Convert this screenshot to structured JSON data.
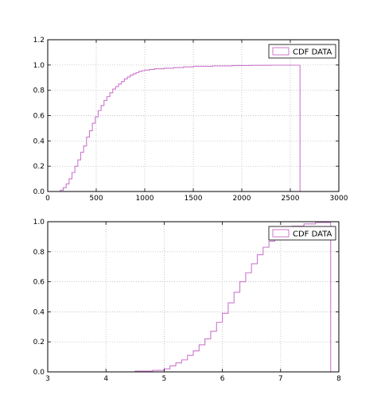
{
  "chart_data": [
    {
      "type": "step",
      "title": "",
      "xlabel": "",
      "ylabel": "",
      "xlim": [
        0,
        3000
      ],
      "ylim": [
        0.0,
        1.2
      ],
      "x_ticks": [
        0,
        500,
        1000,
        1500,
        2000,
        2500,
        3000
      ],
      "x_tick_labels": [
        "0",
        "500",
        "1000",
        "1500",
        "2000",
        "2500",
        "3000"
      ],
      "y_ticks": [
        0.0,
        0.2,
        0.4,
        0.6,
        0.8,
        1.0,
        1.2
      ],
      "y_tick_labels": [
        "0.0",
        "0.2",
        "0.4",
        "0.6",
        "0.8",
        "1.0",
        "1.2"
      ],
      "grid": true,
      "legend": {
        "position": "top-right",
        "entries": [
          "CDF DATA"
        ]
      },
      "series": [
        {
          "name": "CDF DATA",
          "color": "#cc77cc",
          "x": [
            80,
            130,
            160,
            190,
            220,
            250,
            280,
            310,
            340,
            370,
            400,
            430,
            460,
            490,
            520,
            550,
            580,
            610,
            640,
            670,
            700,
            730,
            760,
            790,
            820,
            850,
            880,
            910,
            940,
            970,
            1000,
            1050,
            1100,
            1200,
            1300,
            1400,
            1500,
            1700,
            1900,
            2100,
            2300,
            2600
          ],
          "y": [
            0.0,
            0.01,
            0.03,
            0.06,
            0.1,
            0.15,
            0.2,
            0.25,
            0.31,
            0.36,
            0.43,
            0.48,
            0.54,
            0.59,
            0.64,
            0.68,
            0.72,
            0.75,
            0.78,
            0.81,
            0.83,
            0.85,
            0.87,
            0.89,
            0.905,
            0.92,
            0.93,
            0.94,
            0.95,
            0.955,
            0.96,
            0.965,
            0.97,
            0.975,
            0.98,
            0.985,
            0.99,
            0.993,
            0.996,
            0.998,
            0.999,
            1.0
          ]
        }
      ]
    },
    {
      "type": "step",
      "title": "",
      "xlabel": "",
      "ylabel": "",
      "xlim": [
        3,
        8
      ],
      "ylim": [
        0.0,
        1.0
      ],
      "x_ticks": [
        3,
        4,
        5,
        6,
        7,
        8
      ],
      "x_tick_labels": [
        "3",
        "4",
        "5",
        "6",
        "7",
        "8"
      ],
      "y_ticks": [
        0.0,
        0.2,
        0.4,
        0.6,
        0.8,
        1.0
      ],
      "y_tick_labels": [
        "0.0",
        "0.2",
        "0.4",
        "0.6",
        "0.8",
        "1.0"
      ],
      "grid": true,
      "legend": {
        "position": "top-right",
        "entries": [
          "CDF DATA"
        ]
      },
      "series": [
        {
          "name": "CDF DATA",
          "color": "#cc77cc",
          "x": [
            4.1,
            4.5,
            4.8,
            5.0,
            5.1,
            5.2,
            5.3,
            5.4,
            5.5,
            5.6,
            5.7,
            5.8,
            5.9,
            6.0,
            6.1,
            6.2,
            6.3,
            6.4,
            6.5,
            6.6,
            6.7,
            6.8,
            6.9,
            7.0,
            7.2,
            7.4,
            7.6,
            7.86
          ],
          "y": [
            0.0,
            0.005,
            0.01,
            0.02,
            0.04,
            0.06,
            0.08,
            0.11,
            0.14,
            0.18,
            0.22,
            0.27,
            0.33,
            0.39,
            0.46,
            0.53,
            0.6,
            0.66,
            0.72,
            0.78,
            0.83,
            0.87,
            0.91,
            0.94,
            0.97,
            0.985,
            0.995,
            1.0
          ]
        }
      ]
    }
  ]
}
